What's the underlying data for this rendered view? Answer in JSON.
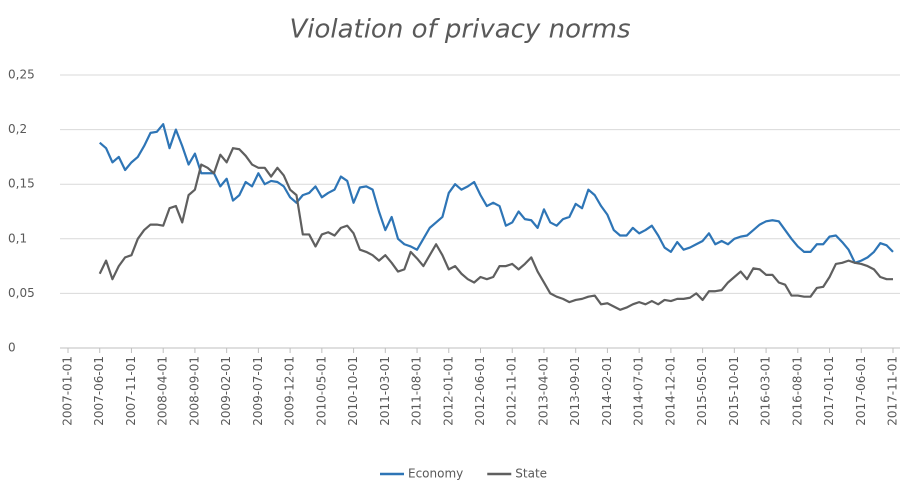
{
  "chart_data": {
    "type": "line",
    "title": "Violation of privacy norms",
    "categories": [
      "2007-01-01",
      null,
      null,
      null,
      null,
      "2007-06-01",
      null,
      null,
      null,
      null,
      "2007-11-01",
      null,
      null,
      null,
      null,
      "2008-04-01",
      null,
      null,
      null,
      null,
      "2008-09-01",
      null,
      null,
      null,
      null,
      "2009-02-01",
      null,
      null,
      null,
      null,
      "2009-07-01",
      null,
      null,
      null,
      null,
      "2009-12-01",
      null,
      null,
      null,
      null,
      "2010-05-01",
      null,
      null,
      null,
      null,
      "2010-10-01",
      null,
      null,
      null,
      null,
      "2011-03-01",
      null,
      null,
      null,
      null,
      "2011-08-01",
      null,
      null,
      null,
      null,
      "2012-01-01",
      null,
      null,
      null,
      null,
      "2012-06-01",
      null,
      null,
      null,
      null,
      "2012-11-01",
      null,
      null,
      null,
      null,
      "2013-04-01",
      null,
      null,
      null,
      null,
      "2013-09-01",
      null,
      null,
      null,
      null,
      "2014-02-01",
      null,
      null,
      null,
      null,
      "2014-07-01",
      null,
      null,
      null,
      null,
      "2014-12-01",
      null,
      null,
      null,
      null,
      "2015-05-01",
      null,
      null,
      null,
      null,
      "2015-10-01",
      null,
      null,
      null,
      null,
      "2016-03-01",
      null,
      null,
      null,
      null,
      "2016-08-01",
      null,
      null,
      null,
      null,
      "2017-01-01",
      null,
      null,
      null,
      null,
      "2017-06-01",
      null,
      null,
      null,
      null,
      "2017-11-01"
    ],
    "series": [
      {
        "name": "Economy",
        "color": "#2e75b6",
        "values": [
          null,
          null,
          null,
          null,
          null,
          0.188,
          0.183,
          0.17,
          0.175,
          0.163,
          0.17,
          0.175,
          0.185,
          0.197,
          0.198,
          0.205,
          0.183,
          0.2,
          0.185,
          0.168,
          0.178,
          0.16,
          0.16,
          0.16,
          0.148,
          0.155,
          0.135,
          0.14,
          0.152,
          0.148,
          0.16,
          0.15,
          0.153,
          0.152,
          0.148,
          0.138,
          0.133,
          0.14,
          0.142,
          0.148,
          0.138,
          0.142,
          0.145,
          0.157,
          0.153,
          0.133,
          0.147,
          0.148,
          0.145,
          0.125,
          0.108,
          0.12,
          0.1,
          0.095,
          0.093,
          0.09,
          0.1,
          0.11,
          0.115,
          0.12,
          0.142,
          0.15,
          0.145,
          0.148,
          0.152,
          0.14,
          0.13,
          0.133,
          0.13,
          0.112,
          0.115,
          0.125,
          0.118,
          0.117,
          0.11,
          0.127,
          0.115,
          0.112,
          0.118,
          0.12,
          0.132,
          0.128,
          0.145,
          0.14,
          0.13,
          0.122,
          0.108,
          0.103,
          0.103,
          0.11,
          0.105,
          0.108,
          0.112,
          0.103,
          0.092,
          0.088,
          0.097,
          0.09,
          0.092,
          0.095,
          0.098,
          0.105,
          0.095,
          0.098,
          0.095,
          0.1,
          0.102,
          0.103,
          0.108,
          0.113,
          0.116,
          0.117,
          0.116,
          0.108,
          0.1,
          0.093,
          0.088,
          0.088,
          0.095,
          0.095,
          0.102,
          0.103,
          0.097,
          0.09,
          0.078,
          0.08,
          0.083,
          0.088,
          0.096,
          0.094,
          0.088
        ]
      },
      {
        "name": "State",
        "color": "#5f5f5f",
        "values": [
          null,
          null,
          null,
          null,
          null,
          0.068,
          0.08,
          0.063,
          0.075,
          0.083,
          0.085,
          0.1,
          0.108,
          0.113,
          0.113,
          0.112,
          0.128,
          0.13,
          0.115,
          0.14,
          0.145,
          0.168,
          0.165,
          0.16,
          0.177,
          0.17,
          0.183,
          0.182,
          0.176,
          0.168,
          0.165,
          0.165,
          0.157,
          0.165,
          0.158,
          0.145,
          0.14,
          0.104,
          0.104,
          0.093,
          0.104,
          0.106,
          0.103,
          0.11,
          0.112,
          0.105,
          0.09,
          0.088,
          0.085,
          0.08,
          0.085,
          0.078,
          0.07,
          0.072,
          0.088,
          0.082,
          0.075,
          0.085,
          0.095,
          0.085,
          0.072,
          0.075,
          0.068,
          0.063,
          0.06,
          0.065,
          0.063,
          0.065,
          0.075,
          0.075,
          0.077,
          0.072,
          0.077,
          0.083,
          0.07,
          0.06,
          0.05,
          0.047,
          0.045,
          0.042,
          0.044,
          0.045,
          0.047,
          0.048,
          0.04,
          0.041,
          0.038,
          0.035,
          0.037,
          0.04,
          0.042,
          0.04,
          0.043,
          0.04,
          0.044,
          0.043,
          0.045,
          0.045,
          0.046,
          0.05,
          0.044,
          0.052,
          0.052,
          0.053,
          0.06,
          0.065,
          0.07,
          0.063,
          0.073,
          0.072,
          0.067,
          0.067,
          0.06,
          0.058,
          0.048,
          0.048,
          0.047,
          0.047,
          0.055,
          0.056,
          0.065,
          0.077,
          0.078,
          0.08,
          0.078,
          0.077,
          0.075,
          0.072,
          0.065,
          0.063,
          0.063
        ]
      }
    ],
    "ylim": [
      0,
      0.25
    ],
    "yticks": [
      0,
      {
        "value": 0.05,
        "label": "0,05"
      },
      {
        "value": 0.1,
        "label": "0,1"
      },
      {
        "value": 0.15,
        "label": "0,15"
      },
      {
        "value": 0.2,
        "label": "0,2"
      },
      {
        "value": 0.25,
        "label": "0,25"
      }
    ],
    "grid": true,
    "legend": "bottom"
  }
}
